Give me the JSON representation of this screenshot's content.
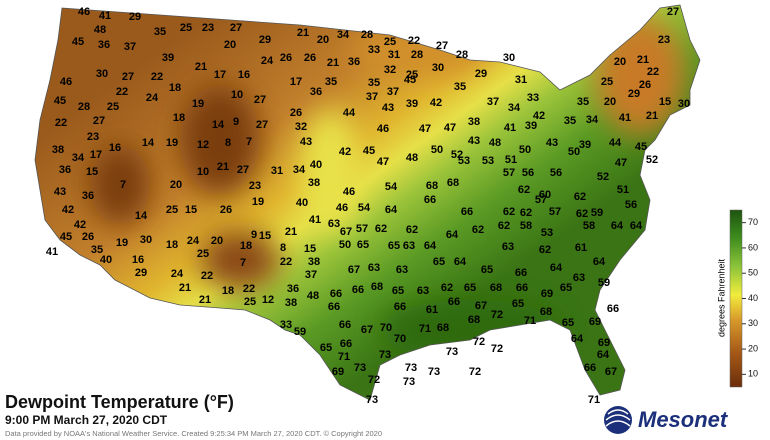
{
  "title": "Dewpoint Temperature (°F)",
  "subtitle": "9:00 PM March 27, 2020 CDT",
  "credit": "Data provided by NOAA's National Weather Service. Created 9:25:34 PM March 27, 2020 CDT. © Copyright 2020",
  "logo": "Mesonet",
  "colorbar": {
    "label": "degrees Fahrenheit",
    "lim": [
      5,
      75
    ],
    "ticks": [
      10,
      20,
      30,
      40,
      50,
      60,
      70
    ]
  },
  "stations": [
    46,
    41,
    29,
    48,
    35,
    25,
    23,
    27,
    45,
    36,
    37,
    39,
    20,
    29,
    26,
    21,
    20,
    34,
    28,
    25,
    22,
    27,
    24,
    26,
    21,
    36,
    33,
    31,
    28,
    28,
    30,
    46,
    30,
    27,
    22,
    21,
    17,
    16,
    17,
    35,
    32,
    35,
    30,
    29,
    25,
    31,
    18,
    22,
    24,
    19,
    10,
    27,
    36,
    37,
    37,
    45,
    35,
    37,
    34,
    33,
    45,
    28,
    25,
    18,
    26,
    44,
    43,
    39,
    42,
    42,
    22,
    27,
    14,
    9,
    27,
    32,
    46,
    47,
    47,
    38,
    41,
    39,
    23,
    14,
    19,
    12,
    8,
    7,
    43,
    43,
    43,
    34,
    41,
    35,
    21,
    35,
    20,
    29,
    26,
    15,
    30,
    25,
    22,
    20,
    21,
    23,
    27,
    38,
    34,
    17,
    16,
    42,
    45,
    47,
    48,
    50,
    52,
    48,
    50,
    39,
    45,
    44,
    36,
    15,
    7,
    20,
    10,
    21,
    27,
    23,
    31,
    34,
    40,
    38,
    46,
    54,
    53,
    53,
    51,
    57,
    56,
    56,
    52,
    51,
    50,
    47,
    52,
    68,
    68,
    62,
    60,
    62,
    56,
    43,
    36,
    42,
    42,
    14,
    25,
    15,
    26,
    19,
    40,
    41,
    46,
    54,
    64,
    66,
    66,
    62,
    62,
    57,
    57,
    62,
    59,
    45,
    26,
    35,
    19,
    30,
    18,
    24,
    20,
    9,
    15,
    21,
    8,
    15,
    63,
    67,
    57,
    62,
    62,
    64,
    62,
    62,
    58,
    53,
    58,
    64,
    64,
    41,
    40,
    16,
    25,
    18,
    7,
    22,
    38,
    50,
    65,
    65,
    63,
    64,
    63,
    62,
    61,
    64,
    29,
    24,
    22,
    37,
    67,
    63,
    63,
    65,
    64,
    65,
    66,
    64,
    21,
    22,
    25,
    12,
    36,
    48,
    66,
    66,
    68,
    65,
    63,
    62,
    65,
    68,
    66,
    65,
    63,
    59,
    21,
    18,
    38,
    66,
    66,
    61,
    66,
    67,
    65,
    69,
    66,
    33,
    59,
    66,
    67,
    70,
    71,
    68,
    68,
    72,
    71,
    68,
    65,
    69,
    65,
    66,
    70,
    72,
    72,
    64,
    69,
    71,
    73,
    73,
    64,
    73,
    72,
    73,
    73,
    69,
    73,
    72,
    66,
    67,
    71,
    73
  ]
}
